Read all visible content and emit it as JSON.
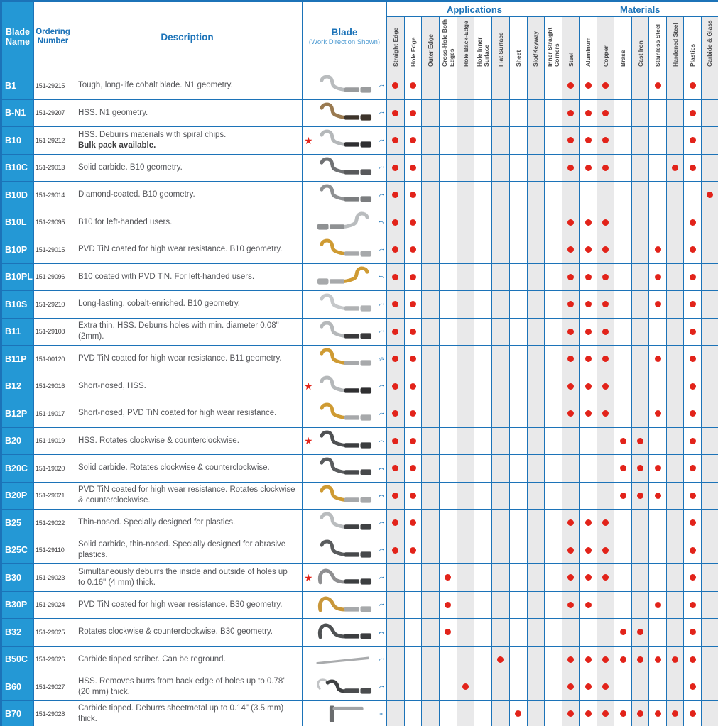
{
  "header": {
    "blade_name": "Blade Name",
    "ordering_number": "Ordering Number",
    "description": "Description",
    "blade": "Blade",
    "blade_sub": "(Work Direction Shown)",
    "applications": "Applications",
    "materials": "Materials"
  },
  "columns": {
    "applications": [
      "Straight Edge",
      "Hole Edge",
      "Outer Edge",
      "Cross-Hole Both Edges",
      "Hole Back-Edge",
      "Hole Inner Surface",
      "Flat Surface",
      "Sheet",
      "Slot/Keyway",
      "Inner Straight Corners"
    ],
    "materials": [
      "Steel",
      "Aluminum",
      "Copper",
      "Brass",
      "Cast Iron",
      "Stainless Steel",
      "Hardened Steel",
      "Plastics",
      "Carbide & Glass"
    ]
  },
  "colors": {
    "grid_blue": "#1c73b8",
    "name_cell_blue": "#2498d5",
    "dot_red": "#e2231a",
    "star_red": "#e2231a",
    "column_shade": "#e9e9ea",
    "arrow_blue": "#1c73b8"
  },
  "rows": [
    {
      "name": "B1",
      "order": "151-29215",
      "desc": "Tough, long-life cobalt blade. N1 geometry.",
      "desc_bold": "",
      "star": false,
      "blade": {
        "shape": "s",
        "color": "#b9bcbe",
        "shank": "#9a9c9e",
        "mirror": false
      },
      "arrow": "cw",
      "apps": [
        1,
        1,
        0,
        0,
        0,
        0,
        0,
        0,
        0,
        0
      ],
      "mats": [
        1,
        1,
        1,
        0,
        0,
        1,
        0,
        1,
        0
      ]
    },
    {
      "name": "B-N1",
      "order": "151-29207",
      "desc": "HSS. N1 geometry.",
      "desc_bold": "",
      "star": false,
      "blade": {
        "shape": "s",
        "color": "#9a7a50",
        "shank": "#3d342b",
        "mirror": false
      },
      "arrow": "cw",
      "apps": [
        1,
        1,
        0,
        0,
        0,
        0,
        0,
        0,
        0,
        0
      ],
      "mats": [
        1,
        1,
        1,
        0,
        0,
        0,
        0,
        1,
        0
      ]
    },
    {
      "name": "B10",
      "order": "151-29212",
      "desc": "HSS. Deburrs materials with spiral chips.",
      "desc_bold": "Bulk pack available.",
      "star": true,
      "blade": {
        "shape": "s",
        "color": "#b5b8ba",
        "shank": "#2f2f31",
        "mirror": false
      },
      "arrow": "cw",
      "apps": [
        1,
        1,
        0,
        0,
        0,
        0,
        0,
        0,
        0,
        0
      ],
      "mats": [
        1,
        1,
        1,
        0,
        0,
        0,
        0,
        1,
        0
      ]
    },
    {
      "name": "B10C",
      "order": "151-29013",
      "desc": "Solid carbide. B10 geometry.",
      "desc_bold": "",
      "star": false,
      "blade": {
        "shape": "s",
        "color": "#707274",
        "shank": "#58595b",
        "mirror": false
      },
      "arrow": "cw",
      "apps": [
        1,
        1,
        0,
        0,
        0,
        0,
        0,
        0,
        0,
        0
      ],
      "mats": [
        1,
        1,
        1,
        0,
        0,
        0,
        1,
        1,
        0
      ]
    },
    {
      "name": "B10D",
      "order": "151-29014",
      "desc": "Diamond-coated. B10 geometry.",
      "desc_bold": "",
      "star": false,
      "blade": {
        "shape": "s",
        "color": "#8f9193",
        "shank": "#7b7d7f",
        "mirror": false
      },
      "arrow": "cw",
      "apps": [
        1,
        1,
        0,
        0,
        0,
        0,
        0,
        0,
        0,
        0
      ],
      "mats": [
        0,
        0,
        0,
        0,
        0,
        0,
        0,
        0,
        1
      ]
    },
    {
      "name": "B10L",
      "order": "151-29095",
      "desc": "B10 for left-handed users.",
      "desc_bold": "",
      "star": false,
      "blade": {
        "shape": "s",
        "color": "#b9bcbe",
        "shank": "#8f9193",
        "mirror": true
      },
      "arrow": "ccw",
      "apps": [
        1,
        1,
        0,
        0,
        0,
        0,
        0,
        0,
        0,
        0
      ],
      "mats": [
        1,
        1,
        1,
        0,
        0,
        0,
        0,
        1,
        0
      ]
    },
    {
      "name": "B10P",
      "order": "151-29015",
      "desc": "PVD TiN coated for high wear resistance. B10 geometry.",
      "desc_bold": "",
      "star": false,
      "blade": {
        "shape": "s",
        "color": "#cf9b33",
        "shank": "#a7a9ab",
        "mirror": false
      },
      "arrow": "cw",
      "apps": [
        1,
        1,
        0,
        0,
        0,
        0,
        0,
        0,
        0,
        0
      ],
      "mats": [
        1,
        1,
        1,
        0,
        0,
        1,
        0,
        1,
        0
      ]
    },
    {
      "name": "B10PL",
      "order": "151-29096",
      "desc": "B10 coated with PVD TiN. For left-handed users.",
      "desc_bold": "",
      "star": false,
      "blade": {
        "shape": "s",
        "color": "#cf9b33",
        "shank": "#a7a9ab",
        "mirror": true
      },
      "arrow": "ccw",
      "apps": [
        1,
        1,
        0,
        0,
        0,
        0,
        0,
        0,
        0,
        0
      ],
      "mats": [
        1,
        1,
        1,
        0,
        0,
        1,
        0,
        1,
        0
      ]
    },
    {
      "name": "B10S",
      "order": "151-29210",
      "desc": "Long-lasting, cobalt-enriched. B10 geometry.",
      "desc_bold": "",
      "star": false,
      "blade": {
        "shape": "s",
        "color": "#c6c8ca",
        "shank": "#b0b2b4",
        "mirror": false
      },
      "arrow": "cw",
      "apps": [
        1,
        1,
        0,
        0,
        0,
        0,
        0,
        0,
        0,
        0
      ],
      "mats": [
        1,
        1,
        1,
        0,
        0,
        1,
        0,
        1,
        0
      ]
    },
    {
      "name": "B11",
      "order": "151-29108",
      "desc": "Extra thin, HSS. Deburrs holes with min. diameter 0.08\" (2mm).",
      "desc_bold": "",
      "star": false,
      "blade": {
        "shape": "s",
        "color": "#b5b8ba",
        "shank": "#3a3a3c",
        "mirror": false
      },
      "arrow": "cw",
      "apps": [
        1,
        1,
        0,
        0,
        0,
        0,
        0,
        0,
        0,
        0
      ],
      "mats": [
        1,
        1,
        1,
        0,
        0,
        0,
        0,
        1,
        0
      ]
    },
    {
      "name": "B11P",
      "order": "151-00120",
      "desc": "PVD TiN coated for high wear resistance. B11 geometry.",
      "desc_bold": "",
      "star": false,
      "blade": {
        "shape": "s",
        "color": "#cf9b33",
        "shank": "#a7a9ab",
        "mirror": false
      },
      "arrow": "double",
      "apps": [
        1,
        1,
        0,
        0,
        0,
        0,
        0,
        0,
        0,
        0
      ],
      "mats": [
        1,
        1,
        1,
        0,
        0,
        1,
        0,
        1,
        0
      ]
    },
    {
      "name": "B12",
      "order": "151-29016",
      "desc": "Short-nosed, HSS.",
      "desc_bold": "",
      "star": true,
      "blade": {
        "shape": "s",
        "color": "#b5b8ba",
        "shank": "#2f2f31",
        "mirror": false
      },
      "arrow": "cw",
      "apps": [
        1,
        1,
        0,
        0,
        0,
        0,
        0,
        0,
        0,
        0
      ],
      "mats": [
        1,
        1,
        1,
        0,
        0,
        0,
        0,
        1,
        0
      ]
    },
    {
      "name": "B12P",
      "order": "151-19017",
      "desc": "Short-nosed, PVD TiN coated for high wear resistance.",
      "desc_bold": "",
      "star": false,
      "blade": {
        "shape": "s",
        "color": "#cf9b33",
        "shank": "#a7a9ab",
        "mirror": false
      },
      "arrow": "cw",
      "apps": [
        1,
        1,
        0,
        0,
        0,
        0,
        0,
        0,
        0,
        0
      ],
      "mats": [
        1,
        1,
        1,
        0,
        0,
        1,
        0,
        1,
        0
      ]
    },
    {
      "name": "B20",
      "order": "151-19019",
      "desc": "HSS. Rotates clockwise & counterclockwise.",
      "desc_bold": "",
      "star": true,
      "blade": {
        "shape": "s",
        "color": "#4f5153",
        "shank": "#3c3e40",
        "mirror": false
      },
      "arrow": "both",
      "apps": [
        1,
        1,
        0,
        0,
        0,
        0,
        0,
        0,
        0,
        0
      ],
      "mats": [
        0,
        0,
        0,
        1,
        1,
        0,
        0,
        1,
        0
      ]
    },
    {
      "name": "B20C",
      "order": "151-19020",
      "desc": "Solid carbide. Rotates clockwise & counterclockwise.",
      "desc_bold": "",
      "star": false,
      "blade": {
        "shape": "s",
        "color": "#5a5c5e",
        "shank": "#47494b",
        "mirror": false
      },
      "arrow": "both",
      "apps": [
        1,
        1,
        0,
        0,
        0,
        0,
        0,
        0,
        0,
        0
      ],
      "mats": [
        0,
        0,
        0,
        1,
        1,
        1,
        0,
        1,
        0
      ]
    },
    {
      "name": "B20P",
      "order": "151-29021",
      "desc": "PVD TiN coated for high wear resistance. Rotates clockwise & counterclockwise.",
      "desc_bold": "",
      "star": false,
      "blade": {
        "shape": "s",
        "color": "#cf9b33",
        "shank": "#a7a9ab",
        "mirror": false
      },
      "arrow": "both",
      "apps": [
        1,
        1,
        0,
        0,
        0,
        0,
        0,
        0,
        0,
        0
      ],
      "mats": [
        0,
        0,
        0,
        1,
        1,
        1,
        0,
        1,
        0
      ]
    },
    {
      "name": "B25",
      "order": "151-29022",
      "desc": "Thin-nosed. Specially designed for plastics.",
      "desc_bold": "",
      "star": false,
      "blade": {
        "shape": "s",
        "color": "#b9bcbe",
        "shank": "#3f4143",
        "mirror": false
      },
      "arrow": "cw",
      "apps": [
        1,
        1,
        0,
        0,
        0,
        0,
        0,
        0,
        0,
        0
      ],
      "mats": [
        1,
        1,
        1,
        0,
        0,
        0,
        0,
        1,
        0
      ]
    },
    {
      "name": "B25C",
      "order": "151-29110",
      "desc": "Solid carbide, thin-nosed. Specially designed for abrasive plastics.",
      "desc_bold": "",
      "star": false,
      "blade": {
        "shape": "s",
        "color": "#5a5c5e",
        "shank": "#47494b",
        "mirror": false
      },
      "arrow": "cw",
      "apps": [
        1,
        1,
        0,
        0,
        0,
        0,
        0,
        0,
        0,
        0
      ],
      "mats": [
        1,
        1,
        1,
        0,
        0,
        0,
        0,
        1,
        0
      ]
    },
    {
      "name": "B30",
      "order": "151-29023",
      "desc": "Simultaneously deburrs the inside and outside of holes up to 0.16\" (4 mm) thick.",
      "desc_bold": "",
      "star": true,
      "blade": {
        "shape": "hump",
        "color": "#8f8f91",
        "shank": "#3c3e40",
        "mirror": false
      },
      "arrow": "cw",
      "apps": [
        0,
        0,
        0,
        1,
        0,
        0,
        0,
        0,
        0,
        0
      ],
      "mats": [
        1,
        1,
        1,
        0,
        0,
        0,
        0,
        1,
        0
      ]
    },
    {
      "name": "B30P",
      "order": "151-29024",
      "desc": "PVD TiN coated for high wear resistance. B30 geometry.",
      "desc_bold": "",
      "star": false,
      "blade": {
        "shape": "hump",
        "color": "#c9973a",
        "shank": "#a7a9ab",
        "mirror": false
      },
      "arrow": "cw",
      "apps": [
        0,
        0,
        0,
        1,
        0,
        0,
        0,
        0,
        0,
        0
      ],
      "mats": [
        1,
        1,
        0,
        0,
        0,
        1,
        0,
        1,
        0
      ]
    },
    {
      "name": "B32",
      "order": "151-29025",
      "desc": "Rotates clockwise & counterclockwise. B30 geometry.",
      "desc_bold": "",
      "star": false,
      "blade": {
        "shape": "hump",
        "color": "#4f5153",
        "shank": "#3c3e40",
        "mirror": false
      },
      "arrow": "both",
      "apps": [
        0,
        0,
        0,
        1,
        0,
        0,
        0,
        0,
        0,
        0
      ],
      "mats": [
        0,
        0,
        0,
        1,
        1,
        0,
        0,
        1,
        0
      ]
    },
    {
      "name": "B50C",
      "order": "151-29026",
      "desc": "Carbide tipped scriber. Can be reground.",
      "desc_bold": "",
      "star": false,
      "blade": {
        "shape": "straight",
        "color": "#a9abad",
        "shank": "#8f9193",
        "mirror": false
      },
      "arrow": "cw",
      "apps": [
        0,
        0,
        0,
        0,
        0,
        0,
        1,
        0,
        0,
        0
      ],
      "mats": [
        1,
        1,
        1,
        1,
        1,
        1,
        1,
        1,
        0
      ]
    },
    {
      "name": "B60",
      "order": "151-29027",
      "desc": "HSS. Removes burrs from back edge of holes up to 0.78\" (20 mm) thick.",
      "desc_bold": "",
      "star": false,
      "blade": {
        "shape": "hook",
        "color": "#3f4143",
        "shank": "#4a4c4e",
        "mirror": false
      },
      "arrow": "cw",
      "apps": [
        0,
        0,
        0,
        0,
        1,
        0,
        0,
        0,
        0,
        0
      ],
      "mats": [
        1,
        1,
        1,
        0,
        0,
        0,
        0,
        1,
        0
      ]
    },
    {
      "name": "B70",
      "order": "151-29028",
      "desc": "Carbide tipped. Deburrs sheetmetal up to 0.14\" (3.5 mm) thick.",
      "desc_bold": "",
      "star": false,
      "blade": {
        "shape": "t",
        "color": "#6a6c6e",
        "shank": "#a2a4a6",
        "mirror": false
      },
      "arrow": "dash",
      "apps": [
        0,
        0,
        0,
        0,
        0,
        0,
        0,
        1,
        0,
        0
      ],
      "mats": [
        1,
        1,
        1,
        1,
        1,
        1,
        1,
        1,
        0
      ]
    }
  ]
}
